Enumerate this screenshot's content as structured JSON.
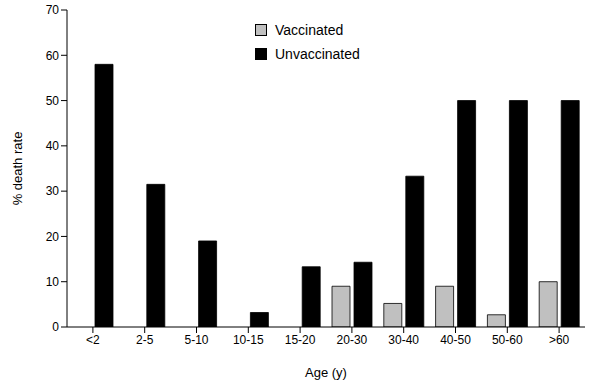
{
  "chart_data": {
    "type": "bar",
    "x_label": "Age (y)",
    "y_label": "% death rate",
    "categories": [
      "<2",
      "2-5",
      "5-10",
      "10-15",
      "15-20",
      "20-30",
      "30-40",
      "40-50",
      "50-60",
      ">60"
    ],
    "series": [
      {
        "name": "Vaccinated",
        "color": "#c0c0c0",
        "values": [
          0,
          0,
          0,
          0,
          0,
          9,
          5.2,
          9,
          2.7,
          10
        ]
      },
      {
        "name": "Unvaccinated",
        "color": "#000000",
        "values": [
          58,
          31.5,
          19,
          3.2,
          13.3,
          14.3,
          33.3,
          50,
          50,
          50
        ]
      }
    ],
    "ylim": [
      0,
      70
    ],
    "yticks": [
      0,
      10,
      20,
      30,
      40,
      50,
      60,
      70
    ],
    "grid": false,
    "legend": "top"
  }
}
